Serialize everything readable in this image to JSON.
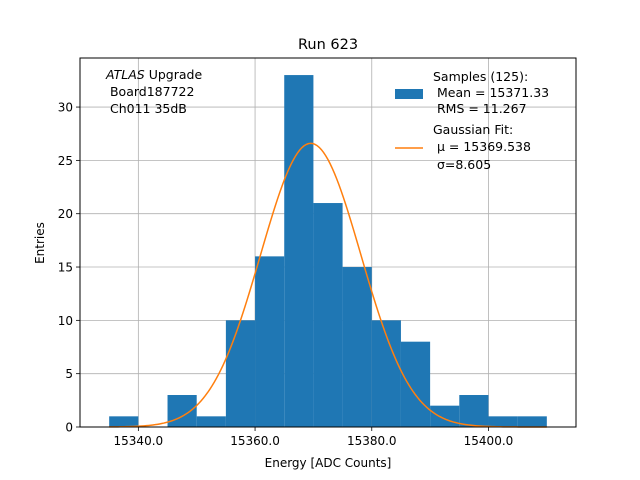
{
  "chart_data": {
    "type": "bar",
    "title": "Run 623",
    "xlabel": "Energy [ADC Counts]",
    "ylabel": "Entries",
    "xlim": [
      15330,
      15415
    ],
    "ylim": [
      0,
      34.6
    ],
    "xticks": [
      15340,
      15360,
      15380,
      15400
    ],
    "xtick_labels": [
      "15340.0",
      "15360.0",
      "15380.0",
      "15400.0"
    ],
    "yticks": [
      0,
      5,
      10,
      15,
      20,
      25,
      30
    ],
    "yticks_labels": [
      "0",
      "5",
      "10",
      "15",
      "20",
      "25",
      "30"
    ],
    "grid": true,
    "bin_edges": [
      15335,
      15340,
      15345,
      15350,
      15355,
      15360,
      15365,
      15370,
      15375,
      15380,
      15385,
      15390,
      15395,
      15400,
      15405,
      15410
    ],
    "counts": [
      1,
      0,
      3,
      1,
      10,
      16,
      33,
      21,
      15,
      10,
      8,
      2,
      3,
      1,
      1
    ],
    "series": [
      {
        "name": "Samples (125):",
        "color": "#1f77b4"
      },
      {
        "name": "Gaussian Fit:",
        "color": "#ff7f0e",
        "mu": 15369.538,
        "sigma": 8.605,
        "amplitude": 26.6,
        "x_range": [
          15335,
          15410
        ]
      }
    ],
    "legend_position": "top-right",
    "legend": {
      "samples_lines": [
        "Samples (125):",
        " Mean = 15371.33",
        " RMS = 11.267"
      ],
      "fit_lines": [
        "Gaussian Fit:",
        " μ = 15369.538",
        " σ=8.605"
      ]
    },
    "annotation": {
      "italic": "ATLAS",
      "suffix": " Upgrade",
      "line2": " Board187722",
      "line3": " Ch011 35dB"
    }
  }
}
